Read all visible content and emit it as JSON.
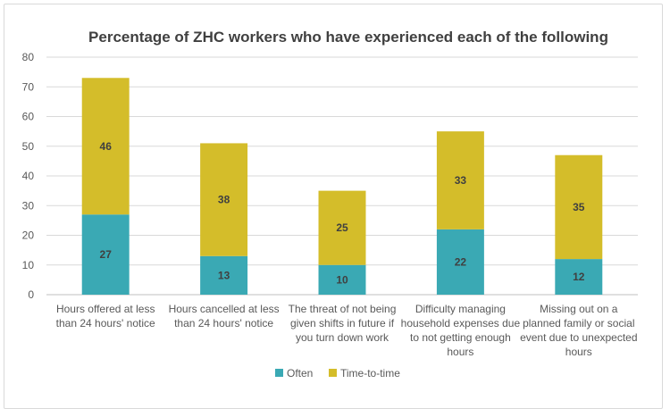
{
  "chart_data": {
    "type": "bar",
    "stacked": true,
    "title": "Percentage of ZHC workers who have experienced each of the following",
    "xlabel": "",
    "ylabel": "",
    "ylim": [
      0,
      80
    ],
    "yticks": [
      0,
      10,
      20,
      30,
      40,
      50,
      60,
      70,
      80
    ],
    "grid": true,
    "legend_position": "bottom",
    "categories": [
      [
        "Hours offered at less",
        "than 24 hours' notice"
      ],
      [
        "Hours cancelled at less",
        "than 24 hours' notice"
      ],
      [
        "The threat of not being",
        "given shifts in future if",
        "you turn down work"
      ],
      [
        "Difficulty managing",
        "household expenses due",
        "to not getting enough",
        "hours"
      ],
      [
        "Missing out on a",
        "planned family or social",
        "event due to unexpected",
        "hours"
      ]
    ],
    "series": [
      {
        "name": "Often",
        "color": "#3aa9b4",
        "values": [
          27,
          13,
          10,
          22,
          12
        ]
      },
      {
        "name": "Time-to-time",
        "color": "#d4bd2a",
        "values": [
          46,
          38,
          25,
          33,
          35
        ]
      }
    ]
  }
}
